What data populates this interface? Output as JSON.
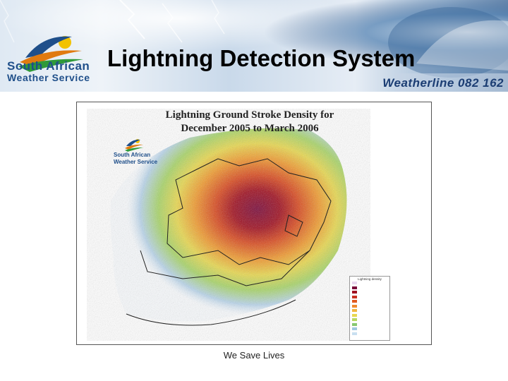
{
  "header": {
    "title": "Lightning Detection System",
    "org_name_line1": "South African",
    "org_name_line2": "Weather Service",
    "weatherline": "Weatherline 082 162"
  },
  "map": {
    "title_line1": "Lightning Ground Stroke Density for",
    "title_line2": "December 2005 to March 2006",
    "logo_line1": "South African",
    "logo_line2": "Weather Service",
    "legend": {
      "title": "Lightning density",
      "colors": [
        "#e8d8f0",
        "#7a0a3a",
        "#a01020",
        "#c83020",
        "#e05a20",
        "#ef8a30",
        "#f2b640",
        "#e8d850",
        "#b8d860",
        "#88c870",
        "#a0c8e0",
        "#c8dff0"
      ]
    }
  },
  "footer": {
    "text": "We Save Lives"
  }
}
